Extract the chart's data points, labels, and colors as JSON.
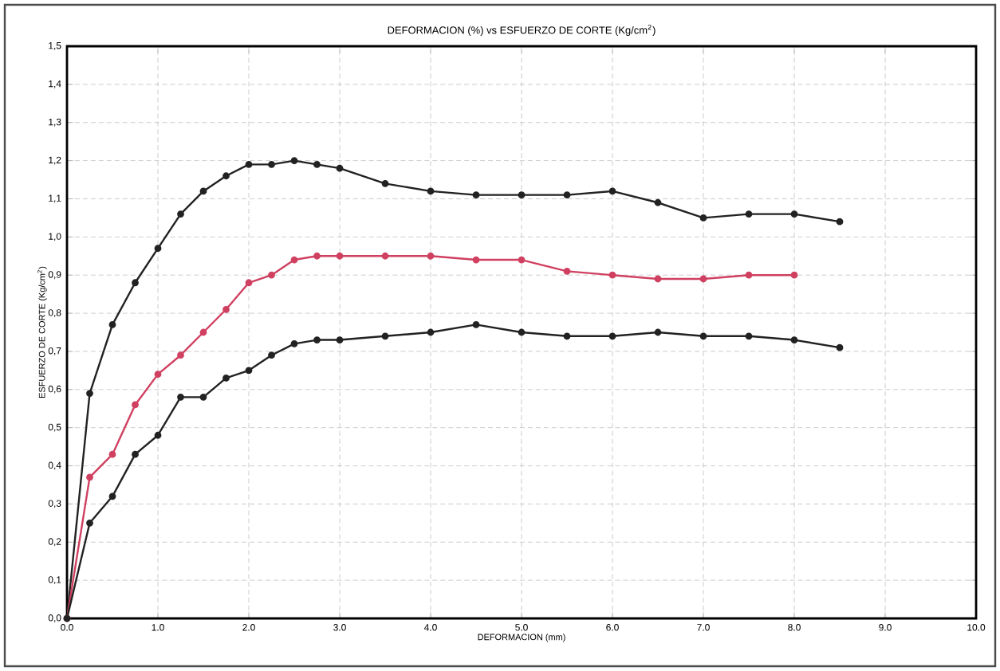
{
  "chart_data": {
    "type": "line",
    "title": "DEFORMACION (%) vs ESFUERZO DE CORTE (Kg/cm$^{2}$)",
    "xlabel": "DEFORMACION (mm)",
    "ylabel": "ESFUERZO DE CORTE (Kg/cm$^{2}$)",
    "x": [
      0,
      0.25,
      0.5,
      0.75,
      1.0,
      1.25,
      1.5,
      1.75,
      2.0,
      2.25,
      2.5,
      2.75,
      3.0,
      3.5,
      4.0,
      4.5,
      5.0,
      5.5,
      6.0,
      6.5,
      7.0,
      7.5,
      8.0,
      8.5
    ],
    "series": [
      {
        "color": "#222222",
        "values": [
          0,
          0.59,
          0.77,
          0.88,
          0.97,
          1.06,
          1.12,
          1.16,
          1.19,
          1.19,
          1.2,
          1.19,
          1.18,
          1.14,
          1.12,
          1.11,
          1.11,
          1.11,
          1.12,
          1.09,
          1.05,
          1.06,
          1.06,
          1.04
        ]
      },
      {
        "color": "#d04060",
        "values": [
          0,
          0.37,
          0.43,
          0.56,
          0.64,
          0.69,
          0.75,
          0.81,
          0.88,
          0.9,
          0.94,
          0.95,
          0.95,
          0.95,
          0.95,
          0.94,
          0.94,
          0.91,
          0.9,
          0.89,
          0.89,
          0.9,
          0.9,
          null
        ]
      },
      {
        "color": "#222222",
        "values": [
          0,
          0.25,
          0.32,
          0.43,
          0.48,
          0.58,
          0.58,
          0.63,
          0.65,
          0.69,
          0.72,
          0.73,
          0.73,
          0.74,
          0.75,
          0.77,
          0.75,
          0.74,
          0.74,
          0.75,
          0.74,
          0.74,
          0.73,
          0.71
        ]
      }
    ],
    "xlim": [
      0,
      10
    ],
    "ylim": [
      0,
      1.5
    ],
    "xticks": [
      {
        "value": 0,
        "label": "0.0"
      },
      {
        "value": 1,
        "label": "1.0"
      },
      {
        "value": 2,
        "label": "2.0"
      },
      {
        "value": 3,
        "label": "3.0"
      },
      {
        "value": 4,
        "label": "4.0"
      },
      {
        "value": 5,
        "label": "5.0"
      },
      {
        "value": 6,
        "label": "6.0"
      },
      {
        "value": 7,
        "label": "7.0"
      },
      {
        "value": 8,
        "label": "8.0"
      },
      {
        "value": 9,
        "label": "9.0"
      },
      {
        "value": 10,
        "label": "10.0"
      }
    ],
    "yticks": [
      {
        "value": 0,
        "label": "0,0"
      },
      {
        "value": 0.1,
        "label": "0,1"
      },
      {
        "value": 0.2,
        "label": "0,2"
      },
      {
        "value": 0.3,
        "label": "0,3"
      },
      {
        "value": 0.4,
        "label": "0,4"
      },
      {
        "value": 0.5,
        "label": "0,5"
      },
      {
        "value": 0.6,
        "label": "0,6"
      },
      {
        "value": 0.7,
        "label": "0,7"
      },
      {
        "value": 0.8,
        "label": "0,8"
      },
      {
        "value": 0.9,
        "label": "0,9"
      },
      {
        "value": 1.0,
        "label": "1,0"
      },
      {
        "value": 1.1,
        "label": "1,1"
      },
      {
        "value": 1.2,
        "label": "1,2"
      },
      {
        "value": 1.3,
        "label": "1,3"
      },
      {
        "value": 1.4,
        "label": "1,4"
      },
      {
        "value": 1.5,
        "label": "1,5"
      }
    ],
    "grid": true,
    "marker": "circle",
    "line_style": "solid"
  }
}
